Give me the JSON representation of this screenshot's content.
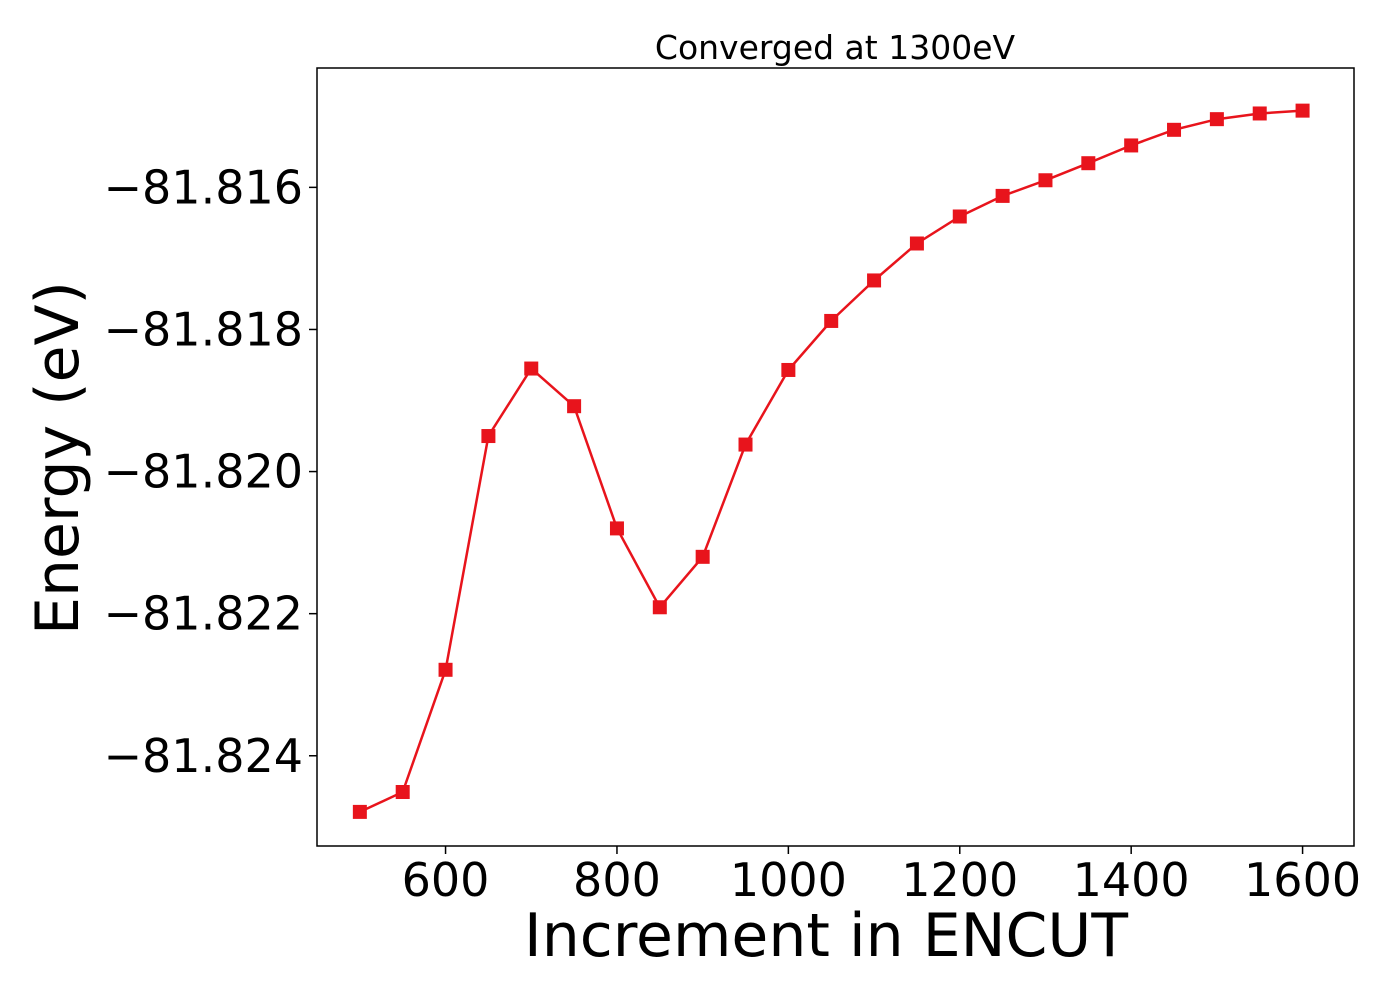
{
  "chart_data": {
    "type": "line",
    "title": "Converged at 1300eV",
    "xlabel": "Increment in ENCUT",
    "ylabel": "Energy (eV)",
    "x": [
      500,
      550,
      600,
      650,
      700,
      750,
      800,
      850,
      900,
      950,
      1000,
      1050,
      1100,
      1150,
      1200,
      1250,
      1300,
      1350,
      1400,
      1450,
      1500,
      1550,
      1600
    ],
    "series": [
      {
        "values": [
          -81.82479,
          -81.82451,
          -81.82279,
          -81.8195,
          -81.81855,
          -81.81908,
          -81.8208,
          -81.82191,
          -81.8212,
          -81.81962,
          -81.81857,
          -81.81788,
          -81.81731,
          -81.81679,
          -81.81641,
          -81.81612,
          -81.8159,
          -81.81566,
          -81.81541,
          -81.81519,
          -81.81504,
          -81.81496,
          -81.81492
        ],
        "color": "#e8141c",
        "marker": "square"
      }
    ],
    "xticks": [
      600,
      800,
      1000,
      1200,
      1400,
      1600
    ],
    "xtick_labels": [
      "600",
      "800",
      "1000",
      "1200",
      "1400",
      "1600"
    ],
    "yticks": [
      -81.816,
      -81.818,
      -81.82,
      -81.822,
      -81.824
    ],
    "ytick_labels": [
      "−81.816",
      "−81.818",
      "−81.820",
      "−81.822",
      "−81.824"
    ],
    "xlim": [
      450,
      1660
    ],
    "ylim": [
      -81.82527,
      -81.81432
    ],
    "grid": false,
    "legend": "none"
  }
}
